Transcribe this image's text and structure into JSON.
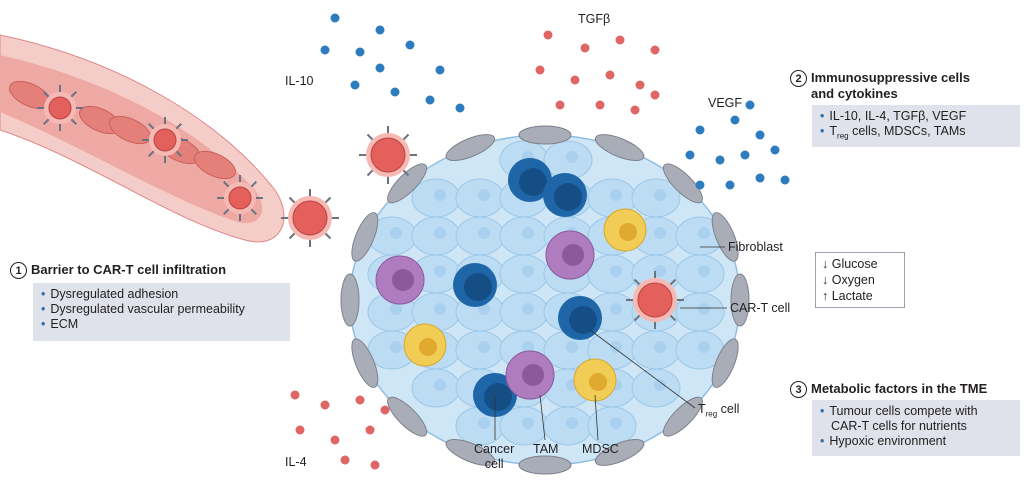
{
  "colors": {
    "vessel_outer": "#f4cdc9",
    "vessel_inner": "#efa9a4",
    "red_cell": "#e3605c",
    "tumour": "#cfe6f6",
    "cancer_cell": "#bcdcf3",
    "treg": "#1f66a8",
    "tam": "#b07cc0",
    "mdsc": "#f2cd55",
    "fibroblast": "#a9adb8",
    "cytokine_blue": "#2d7cc0",
    "cytokine_red": "#e06666",
    "box_bg": "#dfe2ea"
  },
  "cytokines": {
    "il10": "IL-10",
    "tgfb": "TGFβ",
    "vegf": "VEGF",
    "il4": "IL-4"
  },
  "cell_labels": {
    "fibroblast": "Fibroblast",
    "cart": "CAR-T cell",
    "treg_main": "T",
    "treg_sub": "reg",
    "treg_rest": " cell",
    "cancer_line1": "Cancer",
    "cancer_line2": "cell",
    "tam": "TAM",
    "mdsc": "MDSC"
  },
  "section1": {
    "number": "1",
    "title": "Barrier to CAR-T cell infiltration",
    "bullets": [
      "Dysregulated adhesion",
      "Dysregulated vascular permeability",
      "ECM"
    ]
  },
  "section2": {
    "number": "2",
    "title_line1": "Immunosuppressive cells",
    "title_line2": "and cytokines",
    "bullet1": "IL-10, IL-4, TGFβ, VEGF",
    "bullet2_main": "T",
    "bullet2_sub": "reg",
    "bullet2_rest": " cells, MDSCs, TAMs"
  },
  "metabolic": [
    "↓ Glucose",
    "↓ Oxygen",
    "↑ Lactate"
  ],
  "section3": {
    "number": "3",
    "title": "Metabolic factors in the TME",
    "bullet1_line1": "Tumour cells compete with",
    "bullet1_line2": "CAR-T cells for nutrients",
    "bullet2": "Hypoxic environment"
  }
}
